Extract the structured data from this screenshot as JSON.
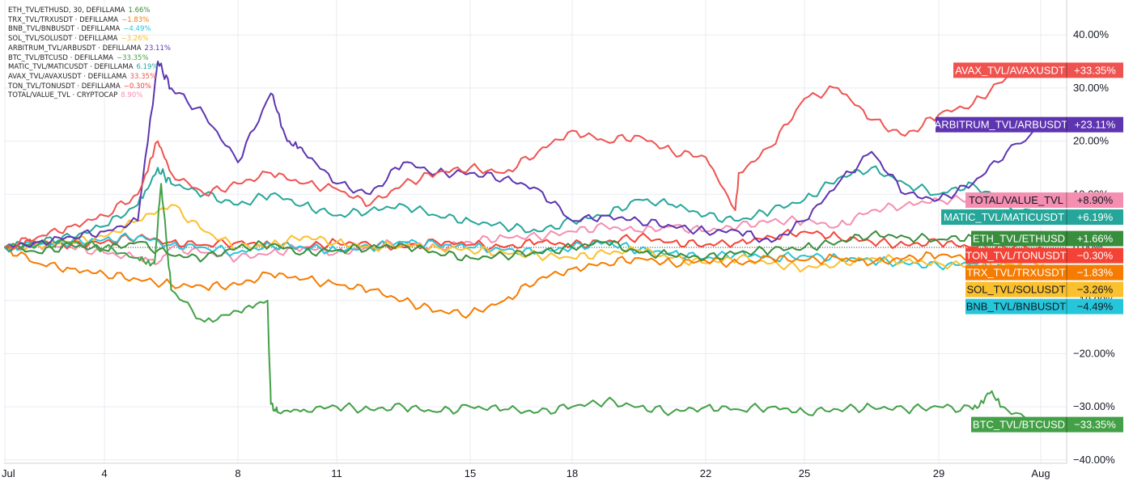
{
  "chart_data": {
    "type": "line",
    "interval": "30",
    "x_ticks": [
      "Jul",
      "4",
      "8",
      "11",
      "15",
      "18",
      "22",
      "25",
      "29",
      "Aug"
    ],
    "y_ticks": [
      "40.00%",
      "30.00%",
      "20.00%",
      "10.00%",
      "0.00%",
      "−10.00%",
      "−20.00%",
      "−30.00%",
      "−40.00%"
    ],
    "ylim": [
      -40,
      40
    ],
    "y_unit": "%",
    "xlim_days": [
      0,
      31.2
    ],
    "grid": true,
    "legend_position": "top-left",
    "series": [
      {
        "name": "ETH_TVL/ETHUSD",
        "legend": "ETH_TVL/ETHUSD, 30, DEFILLAMA",
        "last": 1.66,
        "last_label": "+1.66%",
        "legend_value": "1.66%",
        "color": "#388e3c",
        "x": [
          0,
          1,
          2,
          3,
          4,
          5,
          6,
          7,
          8,
          9,
          10,
          11,
          12,
          13,
          14,
          15,
          16,
          17,
          18,
          19,
          20,
          21,
          22,
          23,
          24,
          25,
          26,
          27,
          28,
          29,
          30,
          31.1
        ],
        "y": [
          0.2,
          -1,
          0.5,
          -0.5,
          1,
          -1.5,
          -2,
          0,
          0.5,
          -1,
          -0.5,
          0,
          0.5,
          -1,
          -2,
          -1.5,
          -1,
          0,
          1,
          -1,
          -1.5,
          -2,
          -1,
          -0.5,
          0,
          1,
          2.5,
          2,
          1.5,
          2,
          1.8,
          1.66
        ]
      },
      {
        "name": "TRX_TVL/TRXUSDT",
        "legend": "TRX_TVL/TRXUSDT · DEFILLAMA",
        "last": -1.83,
        "last_label": "−1.83%",
        "legend_value": "−1.83%",
        "color": "#f57c00",
        "x": [
          0,
          1,
          2,
          3,
          4,
          5,
          6,
          7,
          8,
          9,
          10,
          11,
          12,
          13,
          14,
          15,
          16,
          17,
          18,
          19,
          20,
          21,
          22,
          23,
          24,
          25,
          26,
          27,
          28,
          29,
          30,
          31.1
        ],
        "y": [
          0,
          -3,
          -4,
          -5,
          -6,
          -7,
          -7.5,
          -7,
          -5,
          -6,
          -7,
          -8,
          -10,
          -12,
          -12.5,
          -10,
          -6,
          -4,
          -3,
          -2,
          -3,
          -2.5,
          -3,
          -2,
          -2.5,
          -2,
          -3,
          -2,
          -1.5,
          -2,
          -1.9,
          -1.83
        ]
      },
      {
        "name": "BNB_TVL/BNBUSDT",
        "legend": "BNB_TVL/BNBUSDT · DEFILLAMA",
        "last": -4.49,
        "last_label": "−4.49%",
        "legend_value": "−4.49%",
        "color": "#26c6da",
        "x": [
          0,
          1,
          2,
          3,
          4,
          5,
          6,
          7,
          8,
          9,
          10,
          11,
          12,
          13,
          14,
          15,
          16,
          17,
          18,
          19,
          20,
          21,
          22,
          23,
          24,
          25,
          26,
          27,
          28,
          29,
          30,
          31.1
        ],
        "y": [
          0,
          0.5,
          1,
          1.5,
          2,
          0.5,
          0,
          -1,
          0.5,
          0,
          -0.5,
          0,
          1,
          0.5,
          0,
          -0.5,
          -1,
          0,
          1,
          -0.5,
          -1,
          -2,
          -1,
          -2,
          -1.5,
          -2,
          -2.5,
          -3,
          -3.5,
          -3,
          -4,
          -4.49
        ]
      },
      {
        "name": "SOL_TVL/SOLUSDT",
        "legend": "SOL_TVL/SOLUSDT · DEFILLAMA",
        "last": -3.26,
        "last_label": "−3.26%",
        "legend_value": "−3.26%",
        "color": "#fbc02d",
        "x": [
          0,
          1,
          2,
          3,
          4,
          5,
          6,
          7,
          8,
          9,
          10,
          11,
          12,
          13,
          14,
          15,
          16,
          17,
          18,
          19,
          20,
          21,
          22,
          23,
          24,
          25,
          26,
          27,
          28,
          29,
          30,
          31.1
        ],
        "y": [
          0,
          0.5,
          1,
          2,
          5,
          8,
          3,
          0,
          0.5,
          2,
          1,
          0,
          0.5,
          0,
          -0.5,
          -1,
          -1.5,
          -2,
          -1,
          -0.5,
          -2,
          -3,
          -2,
          -3,
          -4,
          -3,
          -2,
          -2.5,
          -3,
          -3.5,
          -3.2,
          -3.26
        ]
      },
      {
        "name": "ARBITRUM_TVL/ARBUSDT",
        "legend": "ARBITRUM_TVL/ARBUSDT · DEFILLAMA",
        "last": 23.11,
        "last_label": "+23.11%",
        "legend_value": "23.11%",
        "color": "#5e35b1",
        "x": [
          0,
          1,
          2,
          3,
          4,
          4.6,
          5,
          6,
          7,
          8,
          8.5,
          9,
          10,
          11,
          12,
          13,
          14,
          15,
          16,
          17,
          18,
          19,
          20,
          21,
          22,
          23,
          24,
          25,
          26,
          27,
          28,
          29,
          30,
          31.1
        ],
        "y": [
          0,
          1,
          2,
          3,
          5,
          35,
          30,
          25,
          16,
          29,
          20,
          18,
          12,
          10,
          16,
          14,
          14,
          13,
          11,
          5,
          6,
          5,
          4,
          3,
          3,
          1,
          5,
          12,
          18,
          10,
          9,
          12,
          18,
          23.11
        ]
      },
      {
        "name": "BTC_TVL/BTCUSD",
        "legend": "BTC_TVL/BTCUSD · DEFILLAMA",
        "last": -33.35,
        "last_label": "−33.35%",
        "legend_value": "−33.35%",
        "color": "#43a047",
        "x": [
          0,
          1,
          2,
          3,
          4,
          4.5,
          4.7,
          5,
          6,
          7,
          7.9,
          8,
          8.2,
          9,
          10,
          11,
          12,
          13,
          14,
          15,
          16,
          17,
          18,
          19,
          20,
          21,
          22,
          23,
          24,
          25,
          26,
          27,
          28,
          29,
          29.5,
          30,
          31.1
        ],
        "y": [
          0,
          0.5,
          1,
          0,
          -2,
          -3,
          12,
          -8,
          -14,
          -12,
          -10,
          -29.5,
          -31,
          -30.5,
          -30,
          -30.5,
          -30,
          -31,
          -30,
          -30.5,
          -31,
          -30,
          -29,
          -30,
          -31,
          -30,
          -30.5,
          -30,
          -31,
          -30.5,
          -30,
          -30.5,
          -30,
          -30.5,
          -27.5,
          -30.5,
          -33.35
        ]
      },
      {
        "name": "MATIC_TVL/MATICUSDT",
        "legend": "MATIC_TVL/MATICUSDT · DEFILLAMA",
        "last": 6.19,
        "last_label": "+6.19%",
        "legend_value": "6.19%",
        "color": "#26a69a",
        "x": [
          0,
          1,
          2,
          3,
          4,
          4.6,
          5,
          6,
          7,
          8,
          9,
          10,
          11,
          12,
          13,
          14,
          15,
          16,
          17,
          18,
          19,
          20,
          21,
          22,
          23,
          24,
          25,
          26,
          27,
          28,
          29,
          30,
          31.1
        ],
        "y": [
          0,
          1,
          2,
          4,
          8,
          15,
          12,
          10,
          8,
          10,
          8,
          6,
          7,
          8,
          6,
          5,
          4,
          3,
          5,
          6,
          9,
          8,
          6,
          5,
          7,
          9,
          13,
          15,
          12,
          10,
          12,
          8,
          6.19
        ]
      },
      {
        "name": "AVAX_TVL/AVAXUSDT",
        "legend": "AVAX_TVL/AVAXUSDT · DEFILLAMA",
        "last": 33.35,
        "last_label": "+33.35%",
        "legend_value": "33.35%",
        "color": "#ef5350",
        "x": [
          0,
          1,
          2,
          3,
          4,
          4.6,
          5,
          6,
          7,
          8,
          9,
          10,
          11,
          12,
          13,
          14,
          15,
          16,
          17,
          18,
          19,
          20,
          21,
          21.9,
          22,
          23,
          24,
          25,
          26,
          27,
          28,
          29,
          30,
          31.1
        ],
        "y": [
          0,
          2,
          4,
          6,
          10,
          20,
          14,
          10,
          12,
          14,
          12,
          11,
          8,
          12,
          14,
          15,
          14,
          18,
          22,
          20,
          21,
          18,
          17,
          7,
          14,
          19,
          28,
          30,
          24,
          21,
          25,
          27,
          32,
          33.35
        ]
      },
      {
        "name": "TON_TVL/TONUSDT",
        "legend": "TON_TVL/TONUSDT · DEFILLAMA",
        "last": -0.3,
        "last_label": "−0.30%",
        "legend_value": "−0.30%",
        "color": "#f44336",
        "x": [
          0,
          1,
          2,
          3,
          4,
          5,
          6,
          7,
          8,
          9,
          10,
          11,
          12,
          13,
          14,
          15,
          16,
          17,
          18,
          19,
          20,
          21,
          22,
          23,
          24,
          25,
          26,
          27,
          28,
          29,
          30,
          31.1
        ],
        "y": [
          0,
          1,
          0.5,
          1,
          2,
          1,
          0.5,
          1,
          0.5,
          0,
          1,
          0.5,
          0,
          1,
          0.5,
          0,
          1,
          0.5,
          1,
          2,
          1,
          0.5,
          1,
          2,
          3,
          2,
          1,
          0.5,
          1,
          0,
          -0.2,
          -0.3
        ]
      },
      {
        "name": "TOTAL/VALUE_TVL",
        "legend": "TOTAL/VALUE_TVL · CRYPTOCAP",
        "last": 8.9,
        "last_label": "+8.90%",
        "legend_value": "8.90%",
        "color": "#f48fb1",
        "x": [
          0,
          1,
          2,
          3,
          4,
          4.6,
          5,
          6,
          7,
          8,
          9,
          10,
          11,
          12,
          13,
          14,
          15,
          16,
          17,
          18,
          19,
          20,
          21,
          22,
          23,
          24,
          25,
          26,
          27,
          28,
          29,
          30,
          31.1
        ],
        "y": [
          0,
          0.5,
          0,
          -1,
          -2,
          -3,
          0,
          -1,
          -2,
          -1,
          0,
          -1,
          0,
          1,
          0,
          1,
          2,
          2,
          3,
          4,
          3,
          4,
          3,
          4,
          5,
          5,
          4,
          7,
          8,
          9,
          9,
          8.5,
          8.9
        ]
      }
    ]
  }
}
